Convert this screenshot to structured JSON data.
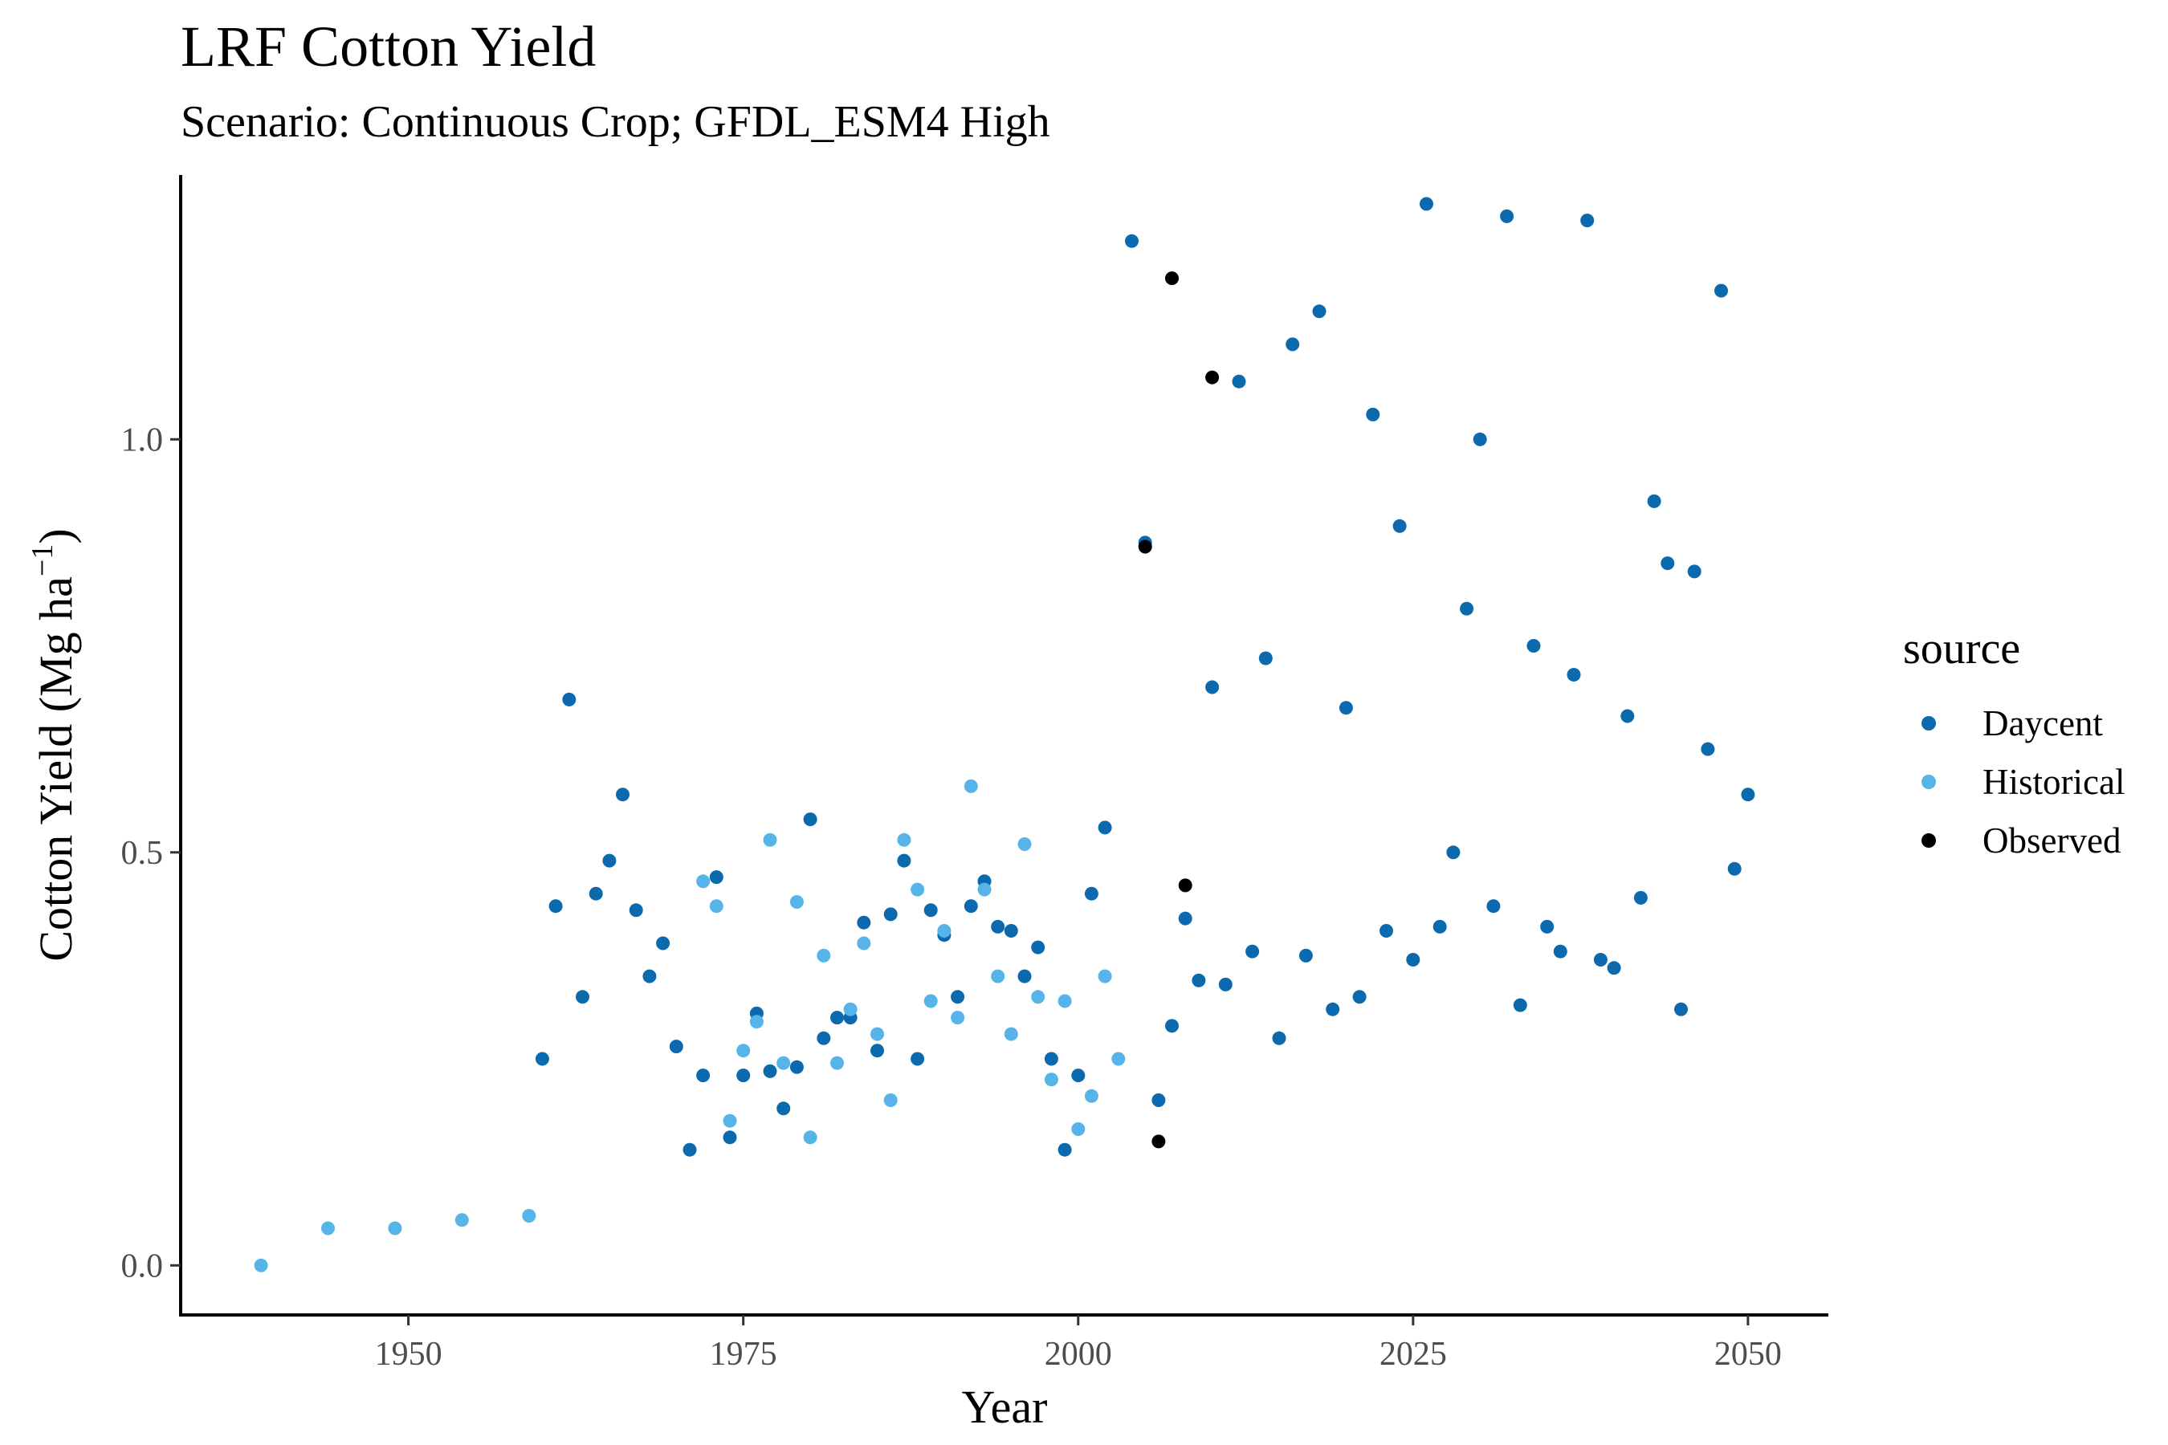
{
  "chart_data": {
    "type": "scatter",
    "title": "LRF Cotton Yield",
    "subtitle": "Scenario: Continuous Crop; GFDL_ESM4 High",
    "xlabel": "Year",
    "ylabel": "Cotton Yield (Mg ha",
    "ylabel_sup": "−1",
    "ylabel_close": ")",
    "xlim": [
      1933,
      2056
    ],
    "ylim": [
      -0.06,
      1.32
    ],
    "x_ticks": [
      1950,
      1975,
      2000,
      2025,
      2050
    ],
    "x_tick_labels": [
      "1950",
      "1975",
      "2000",
      "2025",
      "2050"
    ],
    "y_ticks": [
      0,
      0.5,
      1
    ],
    "y_tick_labels": [
      "0.0",
      "0.5",
      "1.0"
    ],
    "grid": false,
    "legend": {
      "title": "source",
      "position": "right"
    },
    "series": [
      {
        "name": "Daycent",
        "color": "#0b6aad",
        "points": [
          [
            1960,
            0.25
          ],
          [
            1961,
            0.435
          ],
          [
            1962,
            0.685
          ],
          [
            1963,
            0.325
          ],
          [
            1964,
            0.45
          ],
          [
            1965,
            0.49
          ],
          [
            1966,
            0.57
          ],
          [
            1967,
            0.43
          ],
          [
            1968,
            0.35
          ],
          [
            1969,
            0.39
          ],
          [
            1970,
            0.265
          ],
          [
            1971,
            0.14
          ],
          [
            1972,
            0.23
          ],
          [
            1973,
            0.47
          ],
          [
            1974,
            0.155
          ],
          [
            1975,
            0.23
          ],
          [
            1976,
            0.305
          ],
          [
            1977,
            0.235
          ],
          [
            1978,
            0.19
          ],
          [
            1979,
            0.24
          ],
          [
            1980,
            0.54
          ],
          [
            1981,
            0.275
          ],
          [
            1982,
            0.3
          ],
          [
            1983,
            0.3
          ],
          [
            1984,
            0.415
          ],
          [
            1985,
            0.26
          ],
          [
            1986,
            0.425
          ],
          [
            1987,
            0.49
          ],
          [
            1988,
            0.25
          ],
          [
            1989,
            0.43
          ],
          [
            1990,
            0.4
          ],
          [
            1991,
            0.325
          ],
          [
            1992,
            0.435
          ],
          [
            1993,
            0.465
          ],
          [
            1994,
            0.41
          ],
          [
            1995,
            0.405
          ],
          [
            1996,
            0.35
          ],
          [
            1997,
            0.385
          ],
          [
            1998,
            0.25
          ],
          [
            1999,
            0.14
          ],
          [
            2000,
            0.23
          ],
          [
            2001,
            0.45
          ],
          [
            2002,
            0.53
          ],
          [
            2004,
            1.24
          ],
          [
            2005,
            0.875
          ],
          [
            2006,
            0.2
          ],
          [
            2007,
            0.29
          ],
          [
            2008,
            0.42
          ],
          [
            2009,
            0.345
          ],
          [
            2010,
            0.7
          ],
          [
            2011,
            0.34
          ],
          [
            2012,
            1.07
          ],
          [
            2013,
            0.38
          ],
          [
            2014,
            0.735
          ],
          [
            2015,
            0.275
          ],
          [
            2016,
            1.115
          ],
          [
            2017,
            0.375
          ],
          [
            2018,
            1.155
          ],
          [
            2019,
            0.31
          ],
          [
            2020,
            0.675
          ],
          [
            2021,
            0.325
          ],
          [
            2022,
            1.03
          ],
          [
            2023,
            0.405
          ],
          [
            2024,
            0.895
          ],
          [
            2025,
            0.37
          ],
          [
            2026,
            1.285
          ],
          [
            2027,
            0.41
          ],
          [
            2028,
            0.5
          ],
          [
            2029,
            0.795
          ],
          [
            2030,
            1.0
          ],
          [
            2031,
            0.435
          ],
          [
            2032,
            1.27
          ],
          [
            2033,
            0.315
          ],
          [
            2034,
            0.75
          ],
          [
            2035,
            0.41
          ],
          [
            2036,
            0.38
          ],
          [
            2037,
            0.715
          ],
          [
            2038,
            1.265
          ],
          [
            2039,
            0.37
          ],
          [
            2040,
            0.36
          ],
          [
            2041,
            0.665
          ],
          [
            2042,
            0.445
          ],
          [
            2043,
            0.925
          ],
          [
            2044,
            0.85
          ],
          [
            2045,
            0.31
          ],
          [
            2046,
            0.84
          ],
          [
            2047,
            0.625
          ],
          [
            2048,
            1.18
          ],
          [
            2049,
            0.48
          ],
          [
            2050,
            0.57
          ]
        ]
      },
      {
        "name": "Historical",
        "color": "#56b4e9",
        "points": [
          [
            1939,
            0.0
          ],
          [
            1944,
            0.045
          ],
          [
            1949,
            0.045
          ],
          [
            1954,
            0.055
          ],
          [
            1959,
            0.06
          ],
          [
            1972,
            0.465
          ],
          [
            1973,
            0.435
          ],
          [
            1974,
            0.175
          ],
          [
            1975,
            0.26
          ],
          [
            1976,
            0.295
          ],
          [
            1977,
            0.515
          ],
          [
            1978,
            0.245
          ],
          [
            1979,
            0.44
          ],
          [
            1980,
            0.155
          ],
          [
            1981,
            0.375
          ],
          [
            1982,
            0.245
          ],
          [
            1983,
            0.31
          ],
          [
            1984,
            0.39
          ],
          [
            1985,
            0.28
          ],
          [
            1986,
            0.2
          ],
          [
            1987,
            0.515
          ],
          [
            1988,
            0.455
          ],
          [
            1989,
            0.32
          ],
          [
            1990,
            0.405
          ],
          [
            1991,
            0.3
          ],
          [
            1992,
            0.58
          ],
          [
            1993,
            0.455
          ],
          [
            1994,
            0.35
          ],
          [
            1995,
            0.28
          ],
          [
            1996,
            0.51
          ],
          [
            1997,
            0.325
          ],
          [
            1998,
            0.225
          ],
          [
            1999,
            0.32
          ],
          [
            2000,
            0.165
          ],
          [
            2001,
            0.205
          ],
          [
            2002,
            0.35
          ],
          [
            2003,
            0.25
          ]
        ]
      },
      {
        "name": "Observed",
        "color": "#000000",
        "points": [
          [
            2005,
            0.87
          ],
          [
            2006,
            0.15
          ],
          [
            2007,
            1.195
          ],
          [
            2008,
            0.46
          ],
          [
            2010,
            1.075
          ]
        ]
      }
    ]
  }
}
